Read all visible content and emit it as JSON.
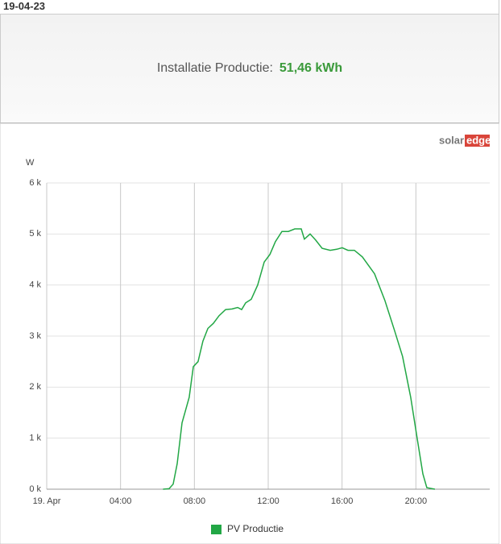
{
  "header": {
    "date": "19-04-23",
    "label": "Installatie Productie:",
    "value": "51,46 kWh"
  },
  "logo": [
    "solar",
    "edge"
  ],
  "chart_data": {
    "type": "line",
    "y_label": "W",
    "x": [
      6.3,
      6.63,
      6.85,
      7.07,
      7.33,
      7.72,
      7.94,
      8.2,
      8.46,
      8.73,
      9.03,
      9.34,
      9.69,
      10.04,
      10.34,
      10.56,
      10.78,
      11.08,
      11.43,
      11.78,
      12.09,
      12.39,
      12.74,
      13.09,
      13.44,
      13.79,
      13.96,
      14.27,
      14.57,
      14.92,
      15.36,
      15.71,
      16.01,
      16.32,
      16.67,
      17.1,
      17.76,
      18.32,
      18.85,
      19.28,
      19.72,
      20.07,
      20.38,
      20.59,
      21.03
    ],
    "series": [
      {
        "name": "PV Productie",
        "color": "#22a745",
        "values": [
          0,
          10,
          100,
          500,
          1300,
          1800,
          2400,
          2500,
          2900,
          3150,
          3250,
          3400,
          3520,
          3530,
          3560,
          3520,
          3650,
          3720,
          4000,
          4450,
          4600,
          4850,
          5050,
          5050,
          5100,
          5100,
          4900,
          5000,
          4880,
          4720,
          4680,
          4700,
          4730,
          4680,
          4680,
          4550,
          4220,
          3700,
          3100,
          2600,
          1800,
          1000,
          300,
          30,
          0
        ]
      }
    ],
    "xlim": [
      0,
      24
    ],
    "xticks": [
      {
        "value": 0,
        "label": "19. Apr"
      },
      {
        "value": 4,
        "label": "04:00"
      },
      {
        "value": 8,
        "label": "08:00"
      },
      {
        "value": 12,
        "label": "12:00"
      },
      {
        "value": 16,
        "label": "16:00"
      },
      {
        "value": 20,
        "label": "20:00"
      }
    ],
    "ylim": [
      0,
      6000
    ],
    "yticks": [
      {
        "value": 0,
        "label": "0 k"
      },
      {
        "value": 1000,
        "label": "1 k"
      },
      {
        "value": 2000,
        "label": "2 k"
      },
      {
        "value": 3000,
        "label": "3 k"
      },
      {
        "value": 4000,
        "label": "4 k"
      },
      {
        "value": 5000,
        "label": "5 k"
      },
      {
        "value": 6000,
        "label": "6 k"
      }
    ],
    "grid": true
  }
}
